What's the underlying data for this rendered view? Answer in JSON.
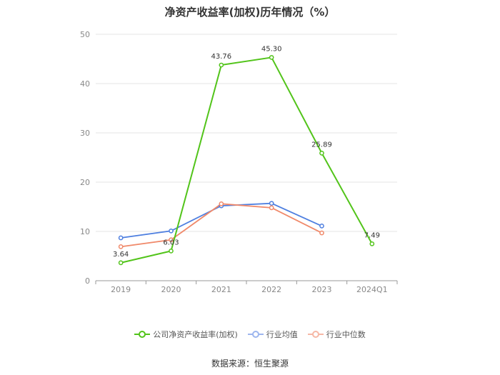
{
  "chart_data": {
    "type": "line",
    "title": "净资产收益率(加权)历年情况（%）",
    "categories": [
      "2019",
      "2020",
      "2021",
      "2022",
      "2023",
      "2024Q1"
    ],
    "ylim": [
      0,
      50
    ],
    "yticks": [
      0,
      10,
      20,
      30,
      40,
      50
    ],
    "grid": true,
    "legend_position": "bottom",
    "series": [
      {
        "name": "公司净资产收益率(加权)",
        "color": "#52c41a",
        "values": [
          3.64,
          6.03,
          43.76,
          45.3,
          25.89,
          7.49
        ],
        "labels": [
          "3.64",
          "6.03",
          "43.76",
          "45.30",
          "25.89",
          "7.49"
        ]
      },
      {
        "name": "行业均值",
        "color": "#4e7fe0",
        "values": [
          8.7,
          10.1,
          15.2,
          15.7,
          11.1,
          null
        ]
      },
      {
        "name": "行业中位数",
        "color": "#f0896a",
        "values": [
          6.9,
          8.3,
          15.6,
          14.8,
          9.7,
          null
        ]
      }
    ]
  },
  "source": "数据来源：恒生聚源"
}
